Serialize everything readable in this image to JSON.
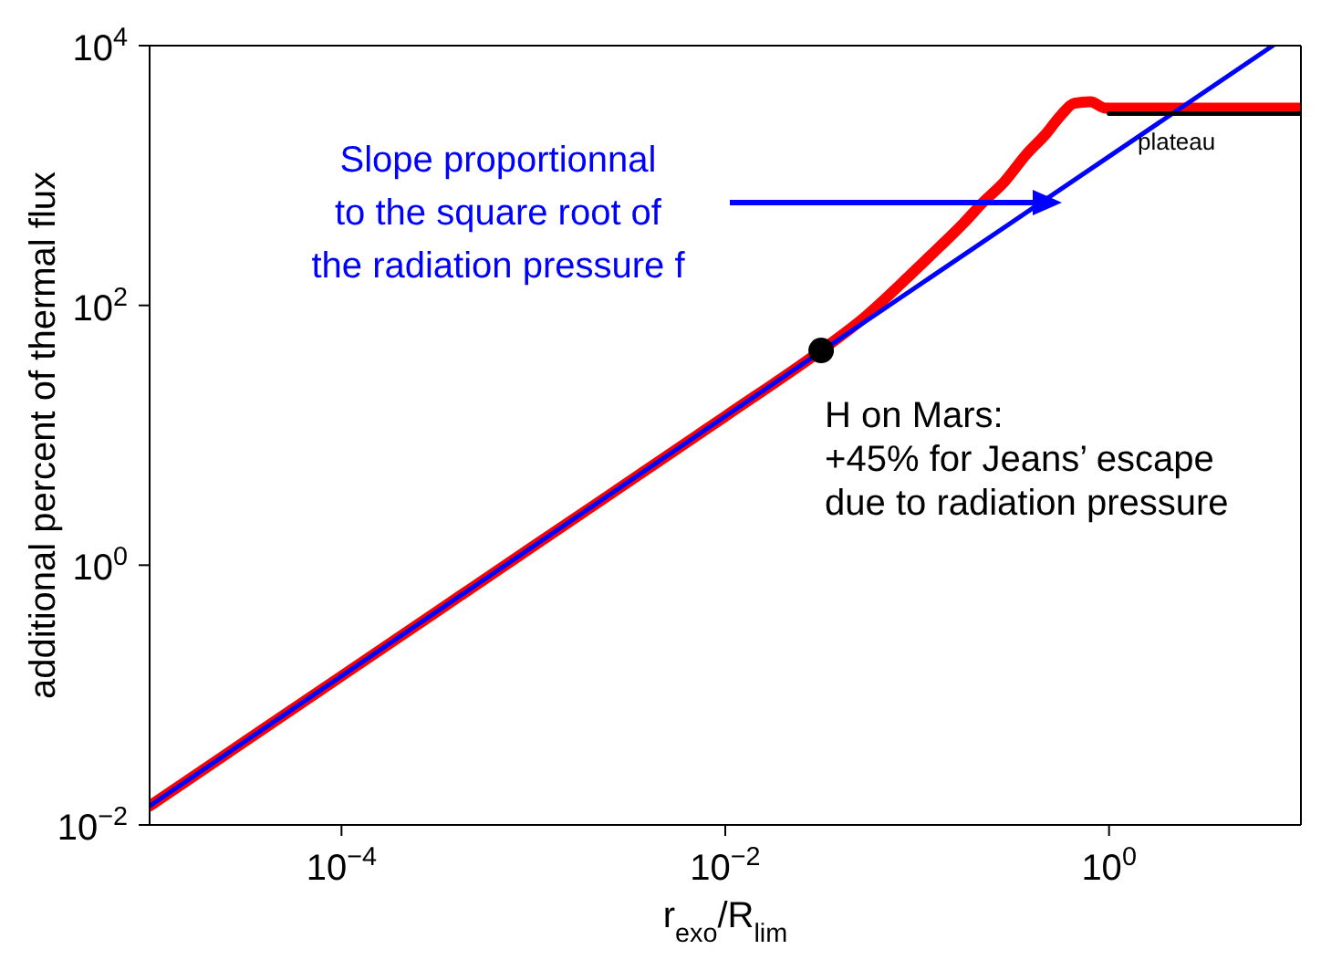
{
  "chart_data": {
    "type": "line",
    "xlabel": "r$_{exo}$/R$_{lim}$",
    "ylabel": "additional percent of thermal flux",
    "log": "xy",
    "xlim": [
      1e-05,
      10
    ],
    "xticks": [
      {
        "value": 0.0001,
        "label": "10$^{−4}$"
      },
      {
        "value": 0.01,
        "label": "10$^{−2}$"
      },
      {
        "value": 1,
        "label": "10$^{0}$"
      }
    ],
    "ylim": [
      0.01,
      10000
    ],
    "yticks": [
      {
        "value": 0.01,
        "label": "10$^{−2}$"
      },
      {
        "value": 1,
        "label": "10$^{0}$"
      },
      {
        "value": 100,
        "label": "10$^{2}$"
      },
      {
        "value": 10000,
        "label": "10$^{4}$"
      }
    ],
    "series": [
      {
        "color": "#ff0000",
        "x": [
          1e-05,
          0.0001,
          0.001,
          0.01,
          0.0316,
          0.05,
          0.093,
          0.13,
          0.174,
          0.22,
          0.284,
          0.37,
          0.47,
          0.56,
          0.66,
          0.8,
          0.96,
          10
        ],
        "values": [
          0.014,
          0.14,
          1.4,
          14,
          45,
          75,
          174,
          280,
          427,
          620,
          890,
          1450,
          2100,
          2900,
          3600,
          3700,
          3300,
          3300
        ]
      },
      {
        "color": "#0000ff",
        "x": [
          1e-05,
          7.14
        ],
        "values": [
          0.014,
          10000
        ]
      },
      {
        "color": "#000000",
        "x": [
          1,
          10
        ],
        "values": [
          3000,
          3000
        ]
      },
      {
        "type": "scatter",
        "marker": "circle",
        "color": "#000000",
        "x": [
          0.0316
        ],
        "values": [
          45
        ]
      }
    ],
    "annotations": [
      "Slope proportionnal\nto the square root of\nthe radiation pressure f",
      {
        "text": "H on Mars:\n+45% for Jeans’ escape\ndue to radiation pressure",
        "x": 0.0316,
        "y": 45
      },
      {
        "text": "plateau",
        "x": 2.6,
        "y": 3000
      }
    ]
  }
}
